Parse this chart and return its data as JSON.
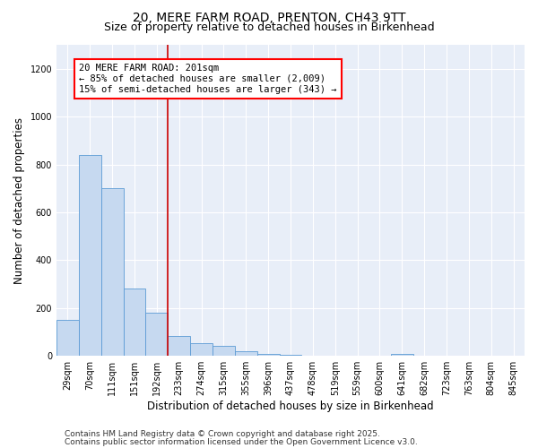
{
  "title1": "20, MERE FARM ROAD, PRENTON, CH43 9TT",
  "title2": "Size of property relative to detached houses in Birkenhead",
  "xlabel": "Distribution of detached houses by size in Birkenhead",
  "ylabel": "Number of detached properties",
  "categories": [
    "29sqm",
    "70sqm",
    "111sqm",
    "151sqm",
    "192sqm",
    "233sqm",
    "274sqm",
    "315sqm",
    "355sqm",
    "396sqm",
    "437sqm",
    "478sqm",
    "519sqm",
    "559sqm",
    "600sqm",
    "641sqm",
    "682sqm",
    "723sqm",
    "763sqm",
    "804sqm",
    "845sqm"
  ],
  "values": [
    150,
    840,
    700,
    280,
    180,
    85,
    55,
    42,
    20,
    8,
    3,
    1,
    0,
    0,
    0,
    8,
    0,
    0,
    0,
    0,
    0
  ],
  "bar_color": "#c6d9f0",
  "bar_edge_color": "#5b9bd5",
  "red_line_bin_index": 4,
  "annotation_line1": "20 MERE FARM ROAD: 201sqm",
  "annotation_line2": "← 85% of detached houses are smaller (2,009)",
  "annotation_line3": "15% of semi-detached houses are larger (343) →",
  "annotation_box_color": "white",
  "annotation_box_edge_color": "red",
  "red_line_color": "#cc0000",
  "ylim": [
    0,
    1300
  ],
  "yticks": [
    0,
    200,
    400,
    600,
    800,
    1000,
    1200
  ],
  "footer1": "Contains HM Land Registry data © Crown copyright and database right 2025.",
  "footer2": "Contains public sector information licensed under the Open Government Licence v3.0.",
  "background_color": "#ffffff",
  "plot_bg_color": "#e8eef8",
  "grid_color": "#ffffff",
  "title_fontsize": 10,
  "subtitle_fontsize": 9,
  "axis_label_fontsize": 8.5,
  "tick_fontsize": 7,
  "annotation_fontsize": 7.5,
  "footer_fontsize": 6.5
}
